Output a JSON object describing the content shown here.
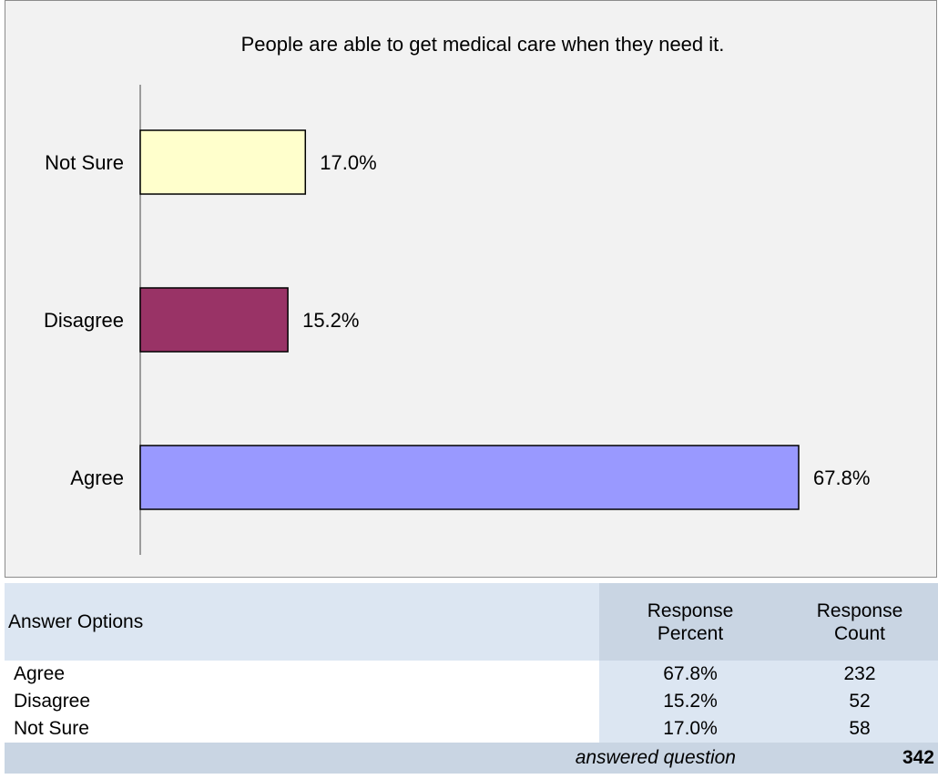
{
  "chart_data": {
    "type": "bar",
    "orientation": "horizontal",
    "title": "People are able to get medical care when they need it.",
    "categories": [
      "Not Sure",
      "Disagree",
      "Agree"
    ],
    "values": [
      17.0,
      15.2,
      67.8
    ],
    "data_labels": [
      "17.0%",
      "15.2%",
      "67.8%"
    ],
    "colors": [
      "#ffffcc",
      "#993366",
      "#9999ff"
    ],
    "xlim": [
      0,
      100
    ],
    "grid": false,
    "legend": "none"
  },
  "table": {
    "header": {
      "options": "Answer Options",
      "percent_line1": "Response",
      "percent_line2": "Percent",
      "count_line1": "Response",
      "count_line2": "Count"
    },
    "rows": [
      {
        "option": "Agree",
        "percent": "67.8%",
        "count": "232"
      },
      {
        "option": "Disagree",
        "percent": "15.2%",
        "count": "52"
      },
      {
        "option": "Not Sure",
        "percent": "17.0%",
        "count": "58"
      }
    ],
    "footer": {
      "label": "answered question",
      "value": "342"
    }
  }
}
